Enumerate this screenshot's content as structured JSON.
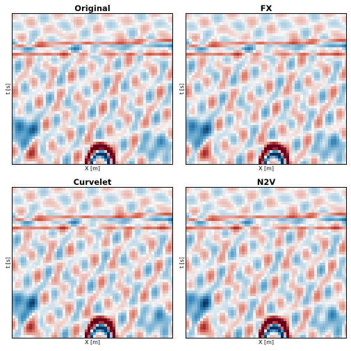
{
  "chart_data": [
    {
      "type": "heatmap",
      "title": "Original",
      "xlabel": "X [m]",
      "ylabel": "t [s]",
      "colormap": "RdBu_r"
    },
    {
      "type": "heatmap",
      "title": "FX",
      "xlabel": "X [m]",
      "ylabel": "t [s]",
      "colormap": "RdBu_r"
    },
    {
      "type": "heatmap",
      "title": "Curvelet",
      "xlabel": "X [m]",
      "ylabel": "t [s]",
      "colormap": "RdBu_r"
    },
    {
      "type": "heatmap",
      "title": "N2V",
      "xlabel": "X [m]",
      "ylabel": "t [s]",
      "colormap": "RdBu_r"
    }
  ]
}
